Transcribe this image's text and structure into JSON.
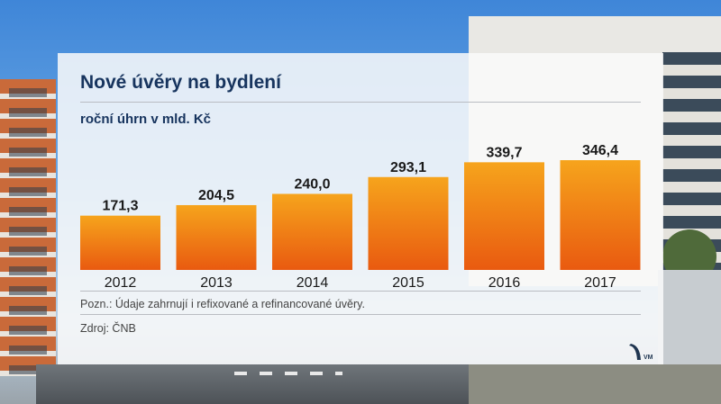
{
  "title": "Nové úvěry na bydlení",
  "subtitle": "roční úhrn v mld. Kč",
  "note": "Pozn.: Údaje zahrnují i refixované a refinancované úvěry.",
  "source": "Zdroj: ČNB",
  "logo_text": "VM",
  "colors": {
    "bar_top": "#f6a41c",
    "bar_bottom": "#e95a10",
    "title": "#17345e"
  },
  "chart_data": {
    "type": "bar",
    "title": "Nové úvěry na bydlení",
    "subtitle": "roční úhrn v mld. Kč",
    "categories": [
      "2012",
      "2013",
      "2014",
      "2015",
      "2016",
      "2017"
    ],
    "values": [
      171.3,
      204.5,
      240.0,
      293.1,
      339.7,
      346.4
    ],
    "value_labels": [
      "171,3",
      "204,5",
      "240,0",
      "293,1",
      "339,7",
      "346,4"
    ],
    "grid": false,
    "legend": "none"
  }
}
